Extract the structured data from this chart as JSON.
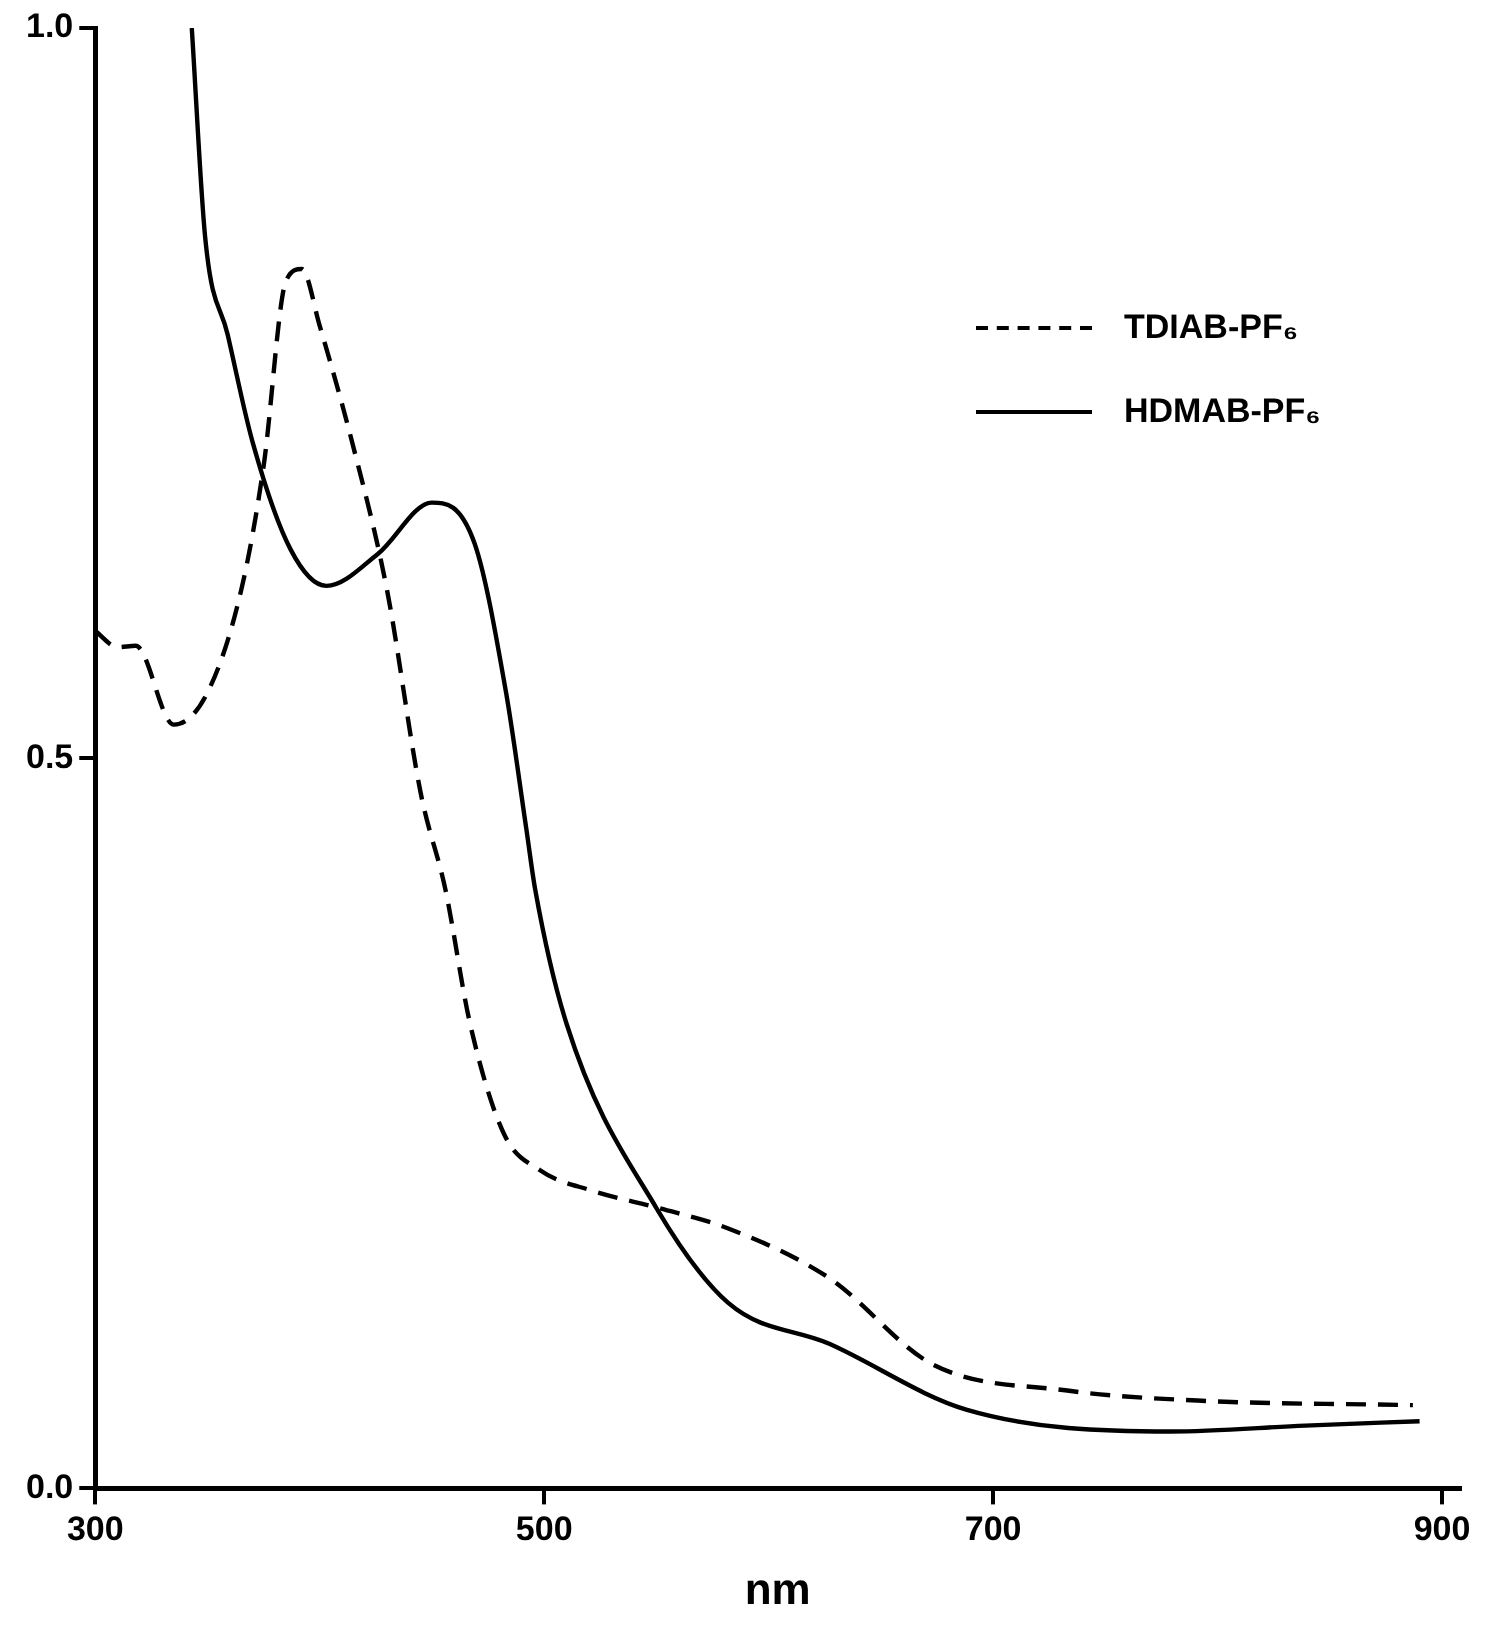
{
  "chart_data": {
    "type": "line",
    "xlabel": "nm",
    "xlim": [
      300,
      908
    ],
    "xticks": [
      300,
      500,
      700,
      900
    ],
    "ylim": [
      0,
      1.0
    ],
    "yticks": [
      {
        "value": 0,
        "label": "0.0"
      },
      {
        "value": 0.5,
        "label": "0.5"
      },
      {
        "value": 1.0,
        "label": "1.0"
      }
    ],
    "grid": false,
    "legend": "top right",
    "marker": "none",
    "series": [
      {
        "name": "TDIAB-PF₆",
        "color": "#000000",
        "line_style": "dashed",
        "x": [
          300,
          310,
          318,
          335,
          350,
          365,
          375,
          385,
          392,
          400,
          415,
          430,
          445,
          456,
          467,
          482,
          498,
          521,
          551,
          582,
          627,
          673,
          733,
          793,
          887
        ],
        "values": [
          0.587,
          0.576,
          0.577,
          0.523,
          0.545,
          0.615,
          0.7,
          0.827,
          0.835,
          0.796,
          0.713,
          0.615,
          0.476,
          0.41,
          0.318,
          0.243,
          0.218,
          0.204,
          0.192,
          0.178,
          0.144,
          0.085,
          0.067,
          0.06,
          0.057
        ]
      },
      {
        "name": "HDMAB-PF₆",
        "color": "#000000",
        "line_style": "solid",
        "x": [
          343,
          349,
          359,
          370,
          387,
          403,
          426,
          450,
          469,
          483,
          492,
          496,
          510,
          550,
          582,
          627,
          688,
          779,
          839,
          890
        ],
        "values": [
          1.0,
          0.856,
          0.79,
          0.717,
          0.643,
          0.618,
          0.64,
          0.675,
          0.647,
          0.545,
          0.452,
          0.41,
          0.318,
          0.192,
          0.127,
          0.099,
          0.054,
          0.039,
          0.043,
          0.046
        ]
      }
    ]
  }
}
